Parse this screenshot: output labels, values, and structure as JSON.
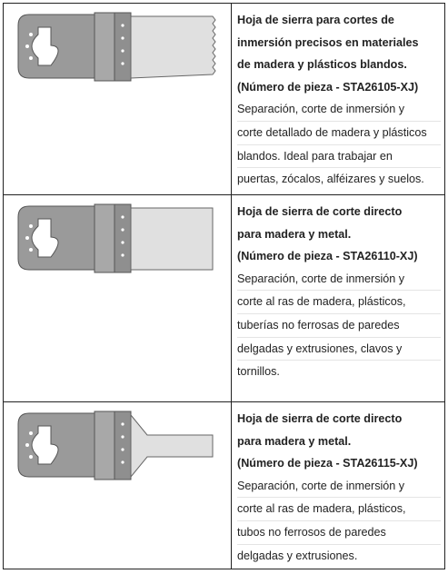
{
  "rows": [
    {
      "title_lines": [
        "Hoja de sierra para cortes de",
        "inmersión precisos en materiales",
        "de madera y plásticos blandos."
      ],
      "part_number": "(Número de pieza - STA26105-XJ)",
      "description_lines": [
        "Separación, corte de inmersión y",
        "corte detallado de madera y plásticos",
        "blandos. Ideal para trabajar en",
        "puertas, zócalos, alféizares y suelos."
      ]
    },
    {
      "title_lines": [
        "Hoja de sierra de corte directo",
        "para madera y metal."
      ],
      "part_number": "(Número de pieza - STA26110-XJ)",
      "description_lines": [
        "Separación, corte de inmersión y",
        "corte al ras de madera, plásticos,",
        "tuberías no ferrosas de paredes",
        "delgadas y extrusiones, clavos y",
        "tornillos."
      ]
    },
    {
      "title_lines": [
        "Hoja de sierra de corte directo",
        "para madera y metal."
      ],
      "part_number": "(Número de pieza - STA26115-XJ)",
      "description_lines": [
        "Separación, corte de inmersión y",
        "corte al ras de madera, plásticos,",
        "tubos no ferrosos de paredes",
        "delgadas y extrusiones."
      ]
    }
  ]
}
